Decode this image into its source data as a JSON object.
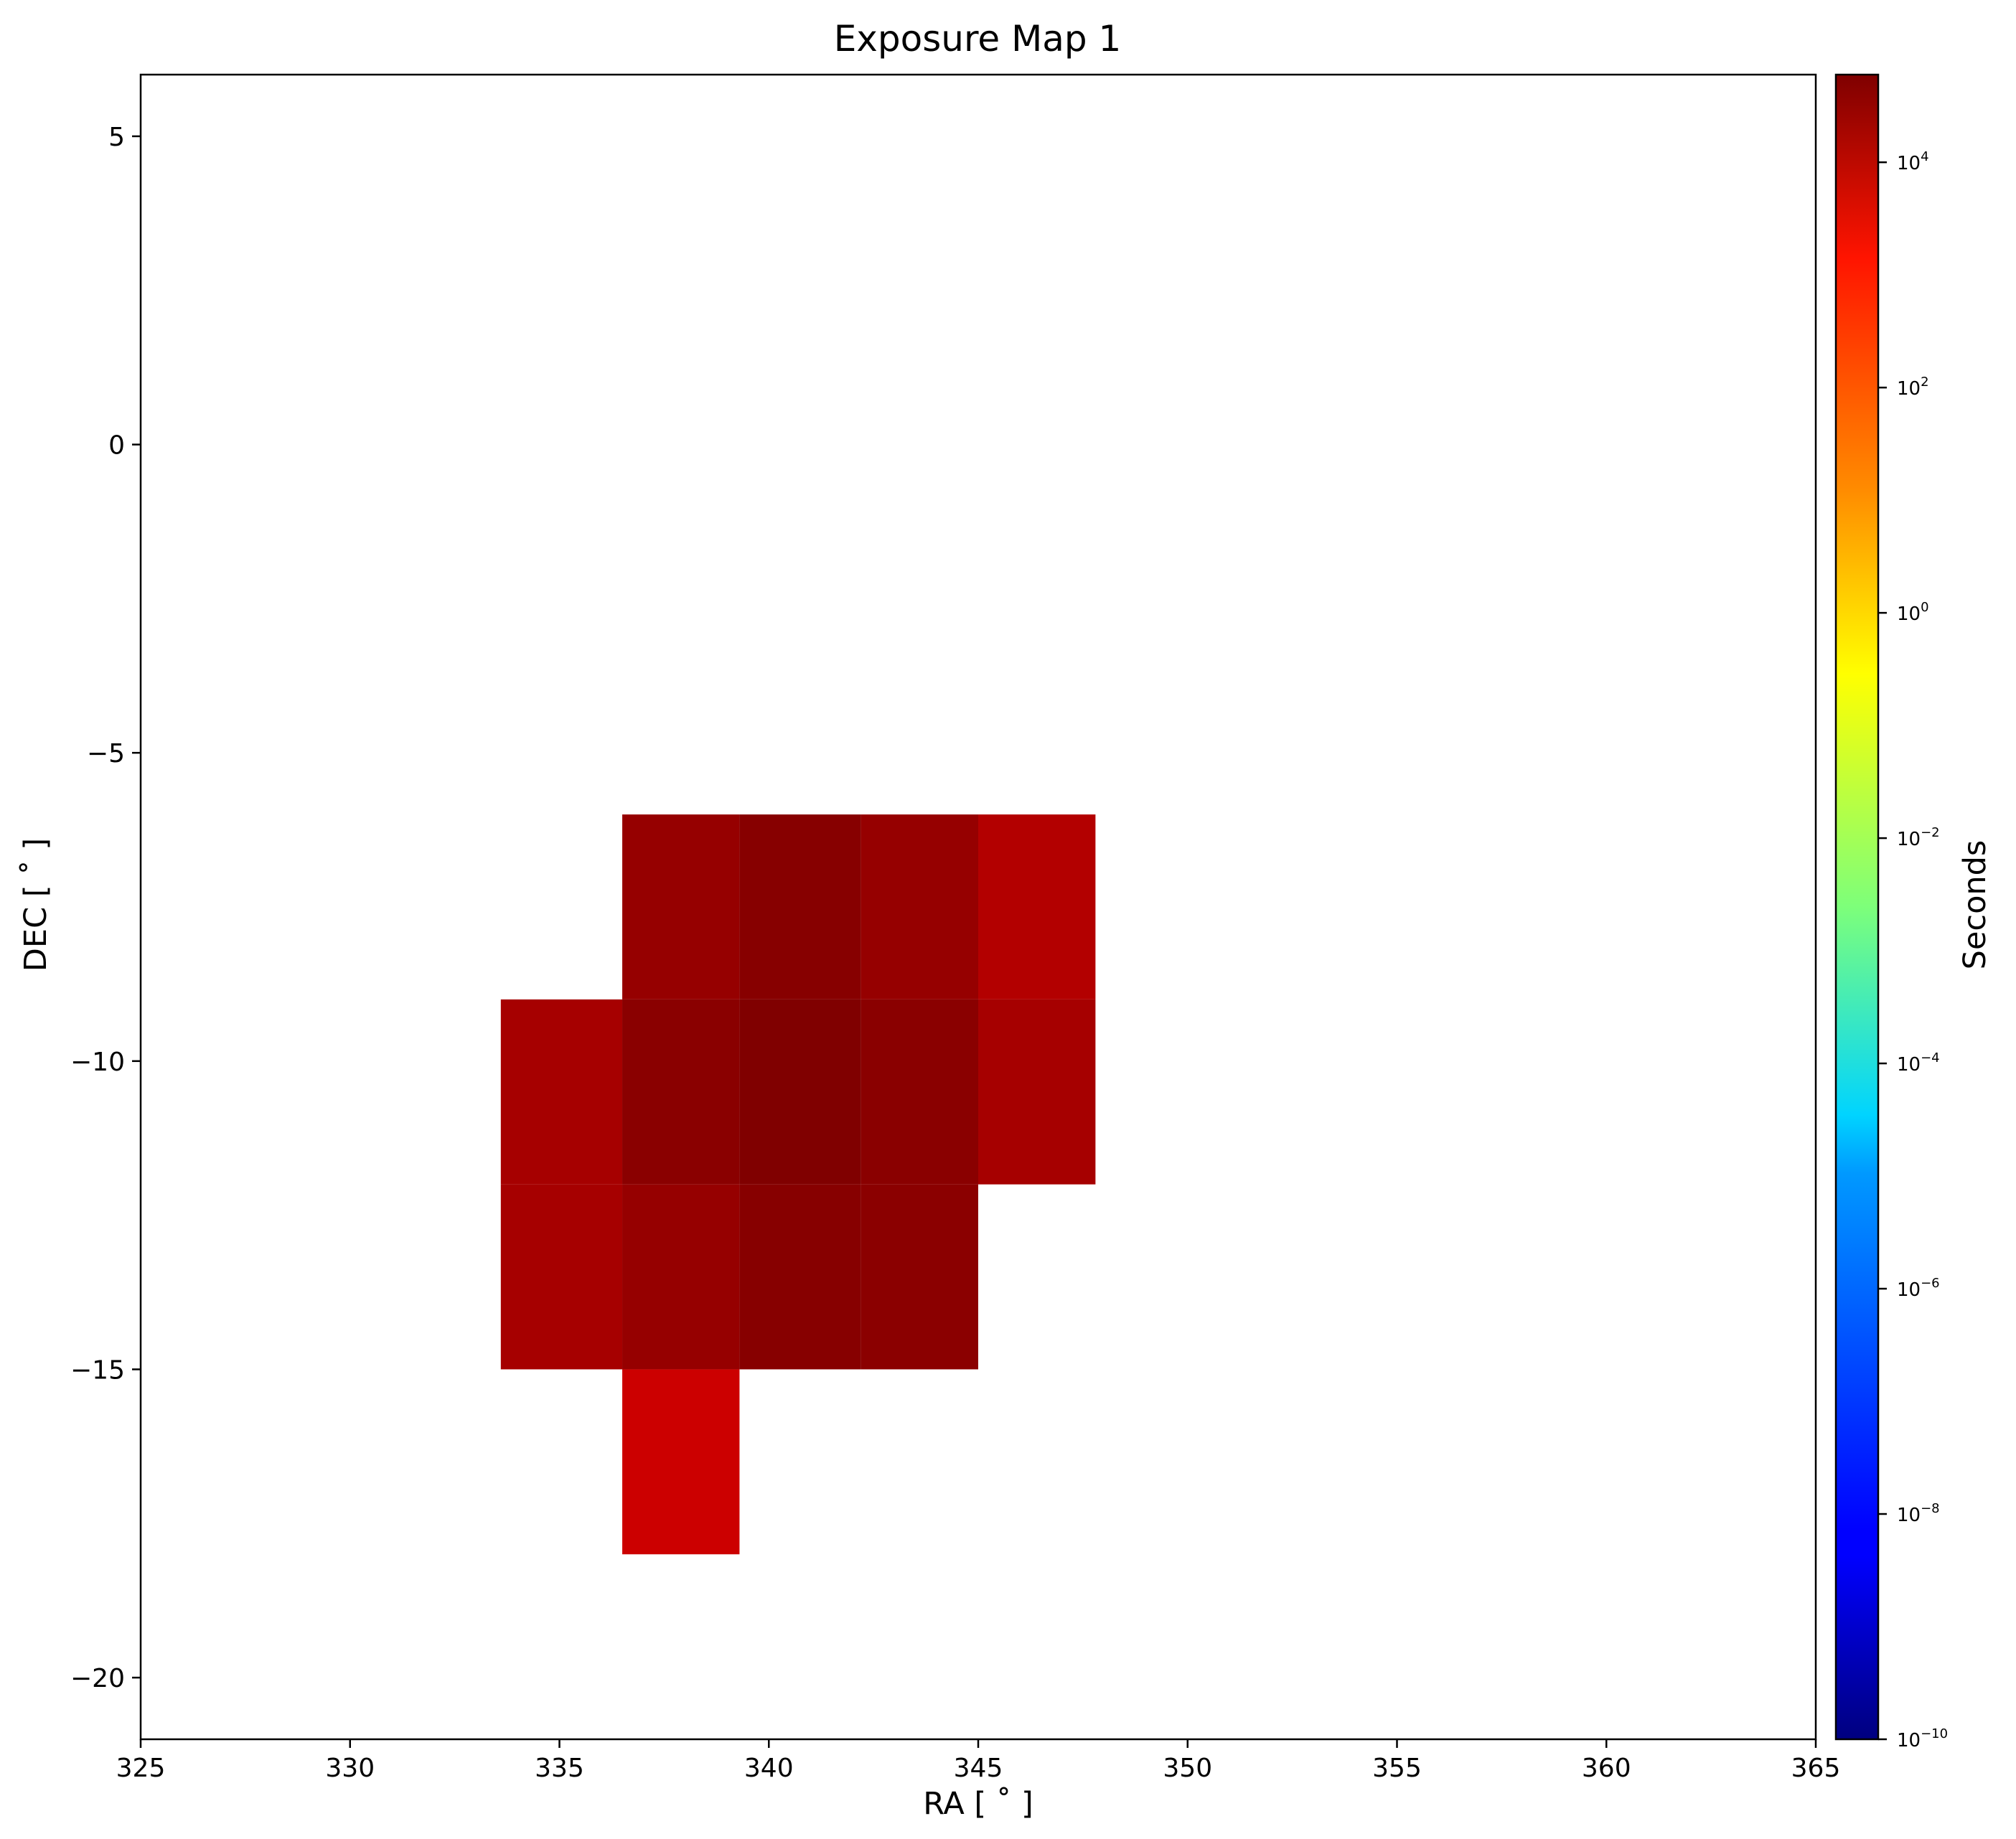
{
  "chart_data": {
    "type": "heatmap",
    "title": "Exposure Map 1",
    "xlabel": "RA [$^\\circ$]",
    "xlabel_display": "RA [ ˚ ]",
    "ylabel": "DEC [ ˚ ]",
    "xlim": [
      325,
      365
    ],
    "ylim": [
      -21,
      6
    ],
    "x_ticks": [
      "325",
      "330",
      "335",
      "340",
      "345",
      "350",
      "355",
      "360",
      "365"
    ],
    "x_tick_values": [
      325,
      330,
      335,
      340,
      345,
      350,
      355,
      360,
      365
    ],
    "y_ticks": [
      "5",
      "0",
      "−5",
      "−10",
      "−15",
      "−20"
    ],
    "y_tick_values": [
      5,
      0,
      -5,
      -10,
      -15,
      -20
    ],
    "grid": false,
    "colorbar": {
      "label": "Seconds",
      "scale": "log",
      "colormap": "jet",
      "range": [
        1e-10,
        60000
      ],
      "ticks": [
        {
          "value": 1e-10,
          "base": "10",
          "exp": "−10"
        },
        {
          "value": 1e-08,
          "base": "10",
          "exp": "−8"
        },
        {
          "value": 1e-06,
          "base": "10",
          "exp": "−6"
        },
        {
          "value": 0.0001,
          "base": "10",
          "exp": "−4"
        },
        {
          "value": 0.01,
          "base": "10",
          "exp": "−2"
        },
        {
          "value": 1,
          "base": "10",
          "exp": "0"
        },
        {
          "value": 100,
          "base": "10",
          "exp": "2"
        },
        {
          "value": 10000,
          "base": "10",
          "exp": "4"
        }
      ]
    },
    "cells": [
      {
        "ra": [
          336.5,
          339.3
        ],
        "dec": [
          -9,
          -6
        ],
        "value": 31000,
        "color": "#960000"
      },
      {
        "ra": [
          339.3,
          342.2
        ],
        "dec": [
          -9,
          -6
        ],
        "value": 42000,
        "color": "#870000"
      },
      {
        "ra": [
          342.2,
          345.0
        ],
        "dec": [
          -9,
          -6
        ],
        "value": 31000,
        "color": "#960000"
      },
      {
        "ra": [
          345.0,
          347.8
        ],
        "dec": [
          -9,
          -6
        ],
        "value": 13000,
        "color": "#b30000"
      },
      {
        "ra": [
          333.6,
          336.5
        ],
        "dec": [
          -12,
          -9
        ],
        "value": 20000,
        "color": "#a60000"
      },
      {
        "ra": [
          336.5,
          339.3
        ],
        "dec": [
          -12,
          -9
        ],
        "value": 44000,
        "color": "#8a0000"
      },
      {
        "ra": [
          339.3,
          342.2
        ],
        "dec": [
          -12,
          -9
        ],
        "value": 55000,
        "color": "#800000"
      },
      {
        "ra": [
          342.2,
          345.0
        ],
        "dec": [
          -12,
          -9
        ],
        "value": 44000,
        "color": "#8a0000"
      },
      {
        "ra": [
          345.0,
          347.8
        ],
        "dec": [
          -12,
          -9
        ],
        "value": 20000,
        "color": "#a60000"
      },
      {
        "ra": [
          333.6,
          336.5
        ],
        "dec": [
          -15,
          -12
        ],
        "value": 20000,
        "color": "#a60000"
      },
      {
        "ra": [
          336.5,
          339.3
        ],
        "dec": [
          -15,
          -12
        ],
        "value": 31000,
        "color": "#960000"
      },
      {
        "ra": [
          339.3,
          342.2
        ],
        "dec": [
          -15,
          -12
        ],
        "value": 42000,
        "color": "#870000"
      },
      {
        "ra": [
          342.2,
          345.0
        ],
        "dec": [
          -15,
          -12
        ],
        "value": 42000,
        "color": "#8b0000"
      },
      {
        "ra": [
          336.5,
          339.3
        ],
        "dec": [
          -18,
          -15
        ],
        "value": 6000,
        "color": "#cc0000"
      }
    ]
  }
}
